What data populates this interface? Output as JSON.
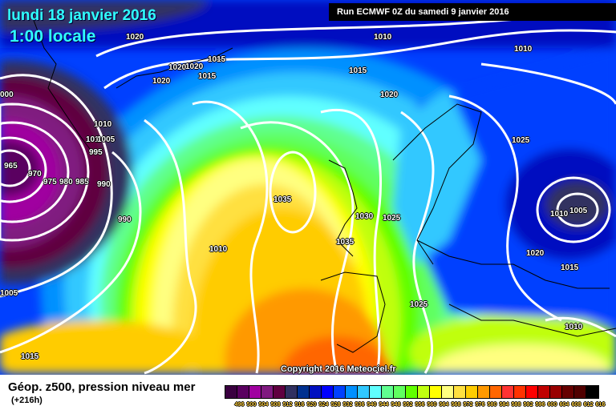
{
  "title": {
    "date": "lundi 18 janvier 2016",
    "time": "1:00 locale"
  },
  "run": "Run ECMWF 0Z du samedi 9 janvier 2016",
  "copyright": "Copyright 2016 Meteociel.fr",
  "caption": {
    "main": "Géop. z500, pression niveau mer",
    "lead": "(+216h)"
  },
  "legend": {
    "values": [
      "496",
      "500",
      "504",
      "508",
      "512",
      "516",
      "520",
      "524",
      "528",
      "532",
      "536",
      "540",
      "544",
      "548",
      "552",
      "556",
      "560",
      "564",
      "568",
      "572",
      "576",
      "580",
      "584",
      "588",
      "592",
      "596",
      "600",
      "604",
      "608",
      "612",
      "616"
    ],
    "colors": [
      "#3a0040",
      "#5a0060",
      "#a000a0",
      "#801a80",
      "#600040",
      "#303060",
      "#003090",
      "#0010c0",
      "#0000ff",
      "#0040ff",
      "#0090ff",
      "#30c8ff",
      "#60ffff",
      "#60ff90",
      "#60ff60",
      "#60ff00",
      "#c0ff10",
      "#ffff00",
      "#ffff80",
      "#ffe040",
      "#ffcc00",
      "#ff9900",
      "#ff6600",
      "#ff3333",
      "#ff3300",
      "#ff0000",
      "#c00000",
      "#990000",
      "#660000",
      "#500000",
      "#000000"
    ]
  },
  "isobar_labels": [
    "1020",
    "1010",
    "1010",
    "1015",
    "1020",
    "1020",
    "1015",
    "1020",
    "1015",
    "1020",
    "000",
    "1010",
    "101",
    "1005",
    "995",
    "965",
    "970",
    "975",
    "980",
    "985",
    "990",
    "990",
    "1035",
    "1030",
    "1025",
    "1010",
    "1005",
    "1025",
    "1010",
    "1035",
    "1020",
    "1015",
    "1005",
    "1025",
    "1010",
    "1015"
  ]
}
